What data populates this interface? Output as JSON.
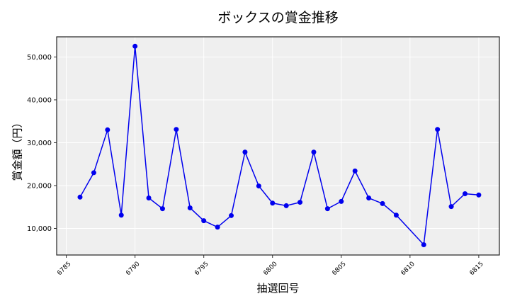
{
  "chart_data": {
    "type": "line",
    "title": "ボックスの賞金推移",
    "xlabel": "抽選回号",
    "ylabel": "賞金額（円）",
    "x": [
      6786,
      6787,
      6788,
      6789,
      6790,
      6791,
      6792,
      6793,
      6794,
      6795,
      6796,
      6797,
      6798,
      6799,
      6800,
      6801,
      6802,
      6803,
      6804,
      6805,
      6806,
      6807,
      6808,
      6809,
      6811,
      6812,
      6813,
      6814,
      6815
    ],
    "series": [
      {
        "name": "ボックス",
        "color": "#0000ee",
        "values": [
          17300,
          23000,
          33000,
          13100,
          52500,
          17100,
          14600,
          33100,
          14800,
          11800,
          10300,
          13000,
          27800,
          19900,
          15900,
          15300,
          16100,
          27800,
          14600,
          16300,
          23400,
          17100,
          15800,
          13100,
          6200,
          33100,
          15100,
          18100,
          17800
        ]
      }
    ],
    "xticks": [
      "6785",
      "6790",
      "6795",
      "6800",
      "6805",
      "6810",
      "6815"
    ],
    "yticks": [
      "10,000",
      "20,000",
      "30,000",
      "40,000",
      "50,000"
    ],
    "xlim": [
      6784.3,
      6816.5
    ],
    "ylim": [
      3800,
      54700
    ],
    "grid": true,
    "legend": "none",
    "background": "#efefef"
  }
}
